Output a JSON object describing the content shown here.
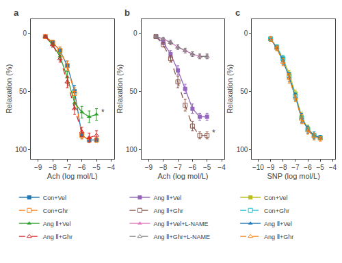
{
  "chart_data": [
    {
      "type": "line",
      "title": "a",
      "xlabel": "Ach (log mol/L)",
      "ylabel": "Relaxation (%)",
      "x": [
        -8.5,
        -8,
        -7.5,
        -7,
        -6.5,
        -6,
        -5.5,
        -5
      ],
      "xlim": [
        -9.5,
        -3.8
      ],
      "xticks": [
        -9,
        -8,
        -7,
        -6,
        -5,
        -4
      ],
      "ylim": [
        108,
        -12
      ],
      "yticks": [
        0,
        50,
        100
      ],
      "grid": false,
      "legend": "bottom",
      "series": [
        {
          "name": "Con+Vel",
          "values": [
            3,
            8,
            15,
            28,
            50,
            88,
            92,
            92
          ],
          "yerr": [
            1,
            2,
            3,
            4,
            5,
            3,
            2,
            2
          ],
          "marker": "square",
          "line_style": "solid"
        },
        {
          "name": "Con+Ghr",
          "values": [
            3,
            8,
            15,
            28,
            52,
            88,
            92,
            92
          ],
          "yerr": [
            1,
            2,
            3,
            4,
            5,
            3,
            2,
            2
          ],
          "marker": "square-open",
          "line_style": "dashed"
        },
        {
          "name": "Ang Ⅱ+Vel",
          "values": [
            3,
            10,
            20,
            38,
            60,
            68,
            72,
            70
          ],
          "yerr": [
            1,
            2,
            3,
            5,
            5,
            5,
            5,
            5
          ],
          "marker": "triangle-up",
          "line_style": "solid"
        },
        {
          "name": "Ang Ⅱ+Ghr",
          "values": [
            3,
            10,
            22,
            42,
            65,
            85,
            90,
            88
          ],
          "yerr": [
            1,
            2,
            3,
            5,
            5,
            4,
            4,
            4
          ],
          "marker": "triangle-up-open",
          "line_style": "dashed"
        }
      ],
      "annotations": [
        {
          "text": "*",
          "x": -5.05,
          "y": 68
        }
      ]
    },
    {
      "type": "line",
      "title": "b",
      "xlabel": "Ach (log mol/L)",
      "ylabel": "Relaxation (%)",
      "x": [
        -8.5,
        -8,
        -7.5,
        -7,
        -6.5,
        -6,
        -5.5,
        -5
      ],
      "xlim": [
        -9.5,
        -3.8
      ],
      "xticks": [
        -9,
        -8,
        -7,
        -6,
        -5,
        -4
      ],
      "ylim": [
        108,
        -12
      ],
      "yticks": [
        0,
        50,
        100
      ],
      "grid": false,
      "legend": "bottom",
      "series": [
        {
          "name": "Ang Ⅱ+Vel",
          "values": [
            3,
            8,
            18,
            32,
            48,
            65,
            72,
            72
          ],
          "yerr": [
            1,
            2,
            3,
            4,
            4,
            4,
            3,
            3
          ],
          "marker": "square",
          "line_style": "solid"
        },
        {
          "name": "Ang Ⅱ+Ghr",
          "values": [
            3,
            10,
            22,
            42,
            62,
            80,
            88,
            88
          ],
          "yerr": [
            1,
            2,
            3,
            5,
            5,
            4,
            3,
            3
          ],
          "marker": "square-open",
          "line_style": "dashed"
        },
        {
          "name": "Ang Ⅱ+Vel+L-NAME",
          "values": [
            3,
            5,
            8,
            12,
            15,
            18,
            20,
            20
          ],
          "yerr": [
            1,
            1,
            2,
            2,
            2,
            2,
            2,
            2
          ],
          "marker": "triangle-up",
          "line_style": "solid"
        },
        {
          "name": "Ang Ⅱ+Ghr+L-NAME",
          "values": [
            3,
            5,
            8,
            12,
            15,
            18,
            20,
            20
          ],
          "yerr": [
            1,
            1,
            2,
            2,
            2,
            2,
            2,
            2
          ],
          "marker": "triangle-up-open",
          "line_style": "dashed"
        }
      ],
      "annotations": [
        {
          "text": "*",
          "x": -5.05,
          "y": 86
        }
      ]
    },
    {
      "type": "line",
      "title": "c",
      "xlabel": "SNP (log mol/L)",
      "ylabel": "Relaxation (%)",
      "x": [
        -9,
        -8.5,
        -8,
        -7.5,
        -7,
        -6.5,
        -6,
        -5.5,
        -5
      ],
      "xlim": [
        -10.5,
        -3.8
      ],
      "xticks": [
        -10,
        -9,
        -8,
        -7,
        -6,
        -5,
        -4
      ],
      "ylim": [
        108,
        -12
      ],
      "yticks": [
        0,
        50,
        100
      ],
      "grid": false,
      "legend": "bottom",
      "series": [
        {
          "name": "Con+Vel",
          "values": [
            5,
            12,
            22,
            35,
            52,
            72,
            82,
            88,
            90
          ],
          "yerr": [
            2,
            2,
            3,
            3,
            3,
            4,
            3,
            3,
            2
          ],
          "marker": "square",
          "line_style": "solid"
        },
        {
          "name": "Con+Ghr",
          "values": [
            5,
            12,
            22,
            37,
            54,
            73,
            83,
            88,
            90
          ],
          "yerr": [
            2,
            2,
            3,
            3,
            3,
            4,
            3,
            3,
            2
          ],
          "marker": "square-open",
          "line_style": "dashed"
        },
        {
          "name": "Ang Ⅱ+Vel",
          "values": [
            5,
            13,
            24,
            38,
            55,
            73,
            83,
            88,
            90
          ],
          "yerr": [
            2,
            2,
            3,
            4,
            3,
            4,
            3,
            3,
            2
          ],
          "marker": "triangle-up",
          "line_style": "solid"
        },
        {
          "name": "Ang Ⅱ+Ghr",
          "values": [
            5,
            13,
            25,
            39,
            56,
            74,
            84,
            89,
            91
          ],
          "yerr": [
            2,
            2,
            3,
            4,
            3,
            4,
            3,
            3,
            2
          ],
          "marker": "triangle-up-open",
          "line_style": "dashed"
        }
      ]
    }
  ]
}
